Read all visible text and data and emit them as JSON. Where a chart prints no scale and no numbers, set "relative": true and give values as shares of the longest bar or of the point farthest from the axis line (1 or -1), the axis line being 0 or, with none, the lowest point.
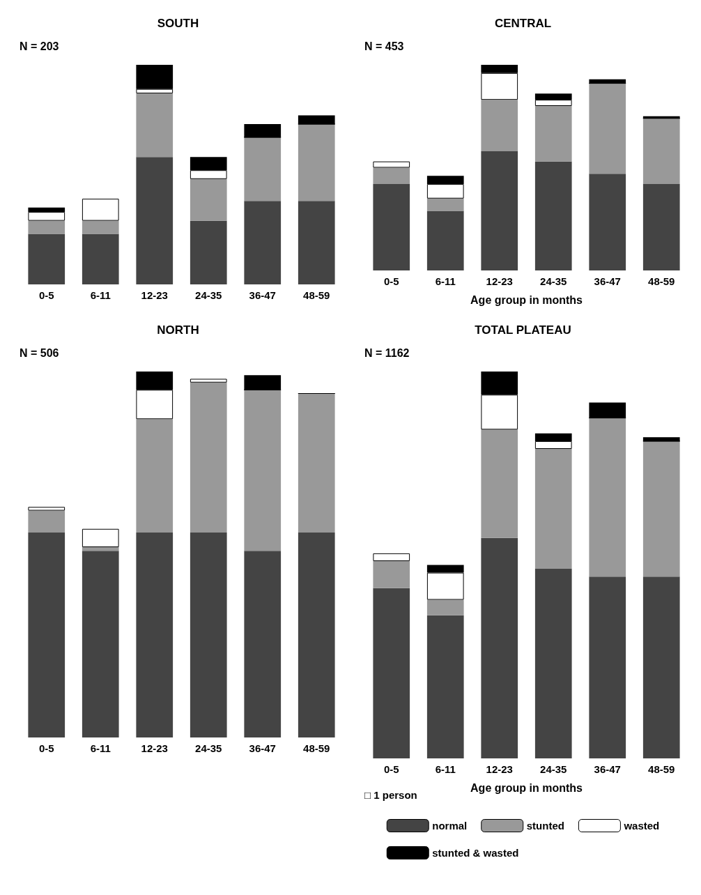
{
  "chart_data": [
    {
      "type": "bar",
      "title": "SOUTH",
      "relative": true,
      "stacked": true,
      "annotations": [
        "N = 203"
      ],
      "categories": [
        "0-5",
        "6-11",
        "12-23",
        "24-35",
        "36-47",
        "48-59"
      ],
      "legend": false,
      "grid": false,
      "series": [
        {
          "color": "#444444",
          "values": [
            0.23,
            0.23,
            0.58,
            0.29,
            0.38,
            0.38
          ]
        },
        {
          "color": "#999999",
          "values": [
            0.06,
            0.06,
            0.29,
            0.19,
            0.29,
            0.35
          ]
        },
        {
          "color": "#ffffff",
          "values": [
            0.04,
            0.1,
            0.02,
            0.04,
            0,
            0
          ]
        },
        {
          "color": "#000000",
          "values": [
            0.02,
            0,
            0.11,
            0.06,
            0.06,
            0.04
          ]
        }
      ]
    },
    {
      "type": "bar",
      "title": "CENTRAL",
      "xlabel": "Age group in months",
      "relative": true,
      "stacked": true,
      "annotations": [
        "N = 453"
      ],
      "categories": [
        "0-5",
        "6-11",
        "12-23",
        "24-35",
        "36-47",
        "48-59"
      ],
      "legend": false,
      "grid": false,
      "series": [
        {
          "color": "#444444",
          "values": [
            0.42,
            0.29,
            0.58,
            0.53,
            0.47,
            0.42
          ]
        },
        {
          "color": "#999999",
          "values": [
            0.08,
            0.06,
            0.25,
            0.27,
            0.44,
            0.32
          ]
        },
        {
          "color": "#ffffff",
          "values": [
            0.03,
            0.07,
            0.13,
            0.03,
            0,
            0
          ]
        },
        {
          "color": "#000000",
          "values": [
            0,
            0.04,
            0.04,
            0.03,
            0.02,
            0.01
          ]
        }
      ]
    },
    {
      "type": "bar",
      "title": "NORTH",
      "relative": true,
      "stacked": true,
      "annotations": [
        "N = 506"
      ],
      "categories": [
        "0-5",
        "6-11",
        "12-23",
        "24-35",
        "36-47",
        "48-59"
      ],
      "legend": false,
      "grid": false,
      "series": [
        {
          "color": "#444444",
          "values": [
            0.56,
            0.51,
            0.56,
            0.56,
            0.51,
            0.56
          ]
        },
        {
          "color": "#999999",
          "values": [
            0.06,
            0.01,
            0.31,
            0.41,
            0.44,
            0.38
          ]
        },
        {
          "color": "#ffffff",
          "values": [
            0.01,
            0.05,
            0.08,
            0.01,
            0,
            0
          ]
        },
        {
          "color": "#000000",
          "values": [
            0,
            0,
            0.05,
            0,
            0.04,
            0
          ]
        }
      ]
    },
    {
      "type": "bar",
      "title": "TOTAL PLATEAU",
      "xlabel": "Age group in months",
      "relative": true,
      "stacked": true,
      "annotations": [
        "N = 1162",
        "□ 1 person"
      ],
      "categories": [
        "0-5",
        "6-11",
        "12-23",
        "24-35",
        "36-47",
        "48-59"
      ],
      "legend": "bottom",
      "grid": false,
      "series": [
        {
          "name": "normal",
          "color": "#444444",
          "values": [
            0.44,
            0.37,
            0.57,
            0.49,
            0.47,
            0.47
          ]
        },
        {
          "name": "stunted",
          "color": "#999999",
          "values": [
            0.07,
            0.04,
            0.28,
            0.31,
            0.41,
            0.35
          ]
        },
        {
          "name": "wasted",
          "color": "#ffffff",
          "values": [
            0.02,
            0.07,
            0.09,
            0.02,
            0,
            0
          ]
        },
        {
          "name": "stunted & wasted",
          "color": "#000000",
          "values": [
            0,
            0.02,
            0.06,
            0.02,
            0.04,
            0.01
          ]
        }
      ]
    }
  ]
}
